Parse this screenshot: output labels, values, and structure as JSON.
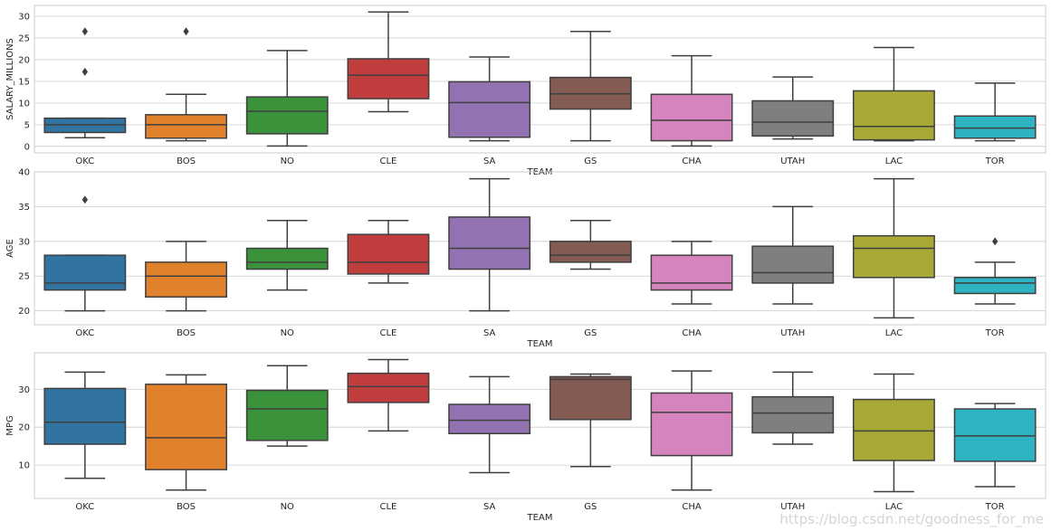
{
  "chart_data": [
    {
      "type": "box",
      "xlabel": "TEAM",
      "ylabel": "SALARY_MILLIONS",
      "ylim": [
        -1.5,
        32.5
      ],
      "yticks": [
        0,
        5,
        10,
        15,
        20,
        25,
        30
      ],
      "grid": "horizontal",
      "categories": [
        "OKC",
        "BOS",
        "NO",
        "CLE",
        "SA",
        "GS",
        "CHA",
        "UTAH",
        "LAC",
        "TOR"
      ],
      "boxes": [
        {
          "team": "OKC",
          "whisker_low": 2.0,
          "q1": 3.2,
          "median": 5.0,
          "q3": 6.5,
          "whisker_high": 6.5,
          "outliers": [
            17.2,
            26.5
          ]
        },
        {
          "team": "BOS",
          "whisker_low": 1.3,
          "q1": 1.9,
          "median": 5.0,
          "q3": 7.3,
          "whisker_high": 12.0,
          "outliers": [
            26.5
          ]
        },
        {
          "team": "NO",
          "whisker_low": 0.1,
          "q1": 2.9,
          "median": 8.1,
          "q3": 11.4,
          "whisker_high": 22.1,
          "outliers": []
        },
        {
          "team": "CLE",
          "whisker_low": 8.0,
          "q1": 11.0,
          "median": 16.4,
          "q3": 20.2,
          "whisker_high": 31.0,
          "outliers": []
        },
        {
          "team": "SA",
          "whisker_low": 1.3,
          "q1": 2.1,
          "median": 10.1,
          "q3": 14.9,
          "whisker_high": 20.6,
          "outliers": []
        },
        {
          "team": "GS",
          "whisker_low": 1.3,
          "q1": 8.6,
          "median": 12.1,
          "q3": 15.9,
          "whisker_high": 26.5,
          "outliers": []
        },
        {
          "team": "CHA",
          "whisker_low": 0.1,
          "q1": 1.3,
          "median": 6.0,
          "q3": 12.0,
          "whisker_high": 20.9,
          "outliers": []
        },
        {
          "team": "UTAH",
          "whisker_low": 1.7,
          "q1": 2.4,
          "median": 5.6,
          "q3": 10.5,
          "whisker_high": 16.0,
          "outliers": []
        },
        {
          "team": "LAC",
          "whisker_low": 1.3,
          "q1": 1.5,
          "median": 4.6,
          "q3": 12.8,
          "whisker_high": 22.8,
          "outliers": []
        },
        {
          "team": "TOR",
          "whisker_low": 1.3,
          "q1": 1.9,
          "median": 4.2,
          "q3": 7.0,
          "whisker_high": 14.6,
          "outliers": []
        }
      ]
    },
    {
      "type": "box",
      "xlabel": "TEAM",
      "ylabel": "AGE",
      "ylim": [
        18,
        40
      ],
      "yticks": [
        20,
        25,
        30,
        35,
        40
      ],
      "grid": "horizontal",
      "categories": [
        "OKC",
        "BOS",
        "NO",
        "CLE",
        "SA",
        "GS",
        "CHA",
        "UTAH",
        "LAC",
        "TOR"
      ],
      "boxes": [
        {
          "team": "OKC",
          "whisker_low": 20,
          "q1": 23,
          "median": 24,
          "q3": 28,
          "whisker_high": 28,
          "outliers": [
            36
          ]
        },
        {
          "team": "BOS",
          "whisker_low": 20,
          "q1": 22,
          "median": 25,
          "q3": 27,
          "whisker_high": 30,
          "outliers": []
        },
        {
          "team": "NO",
          "whisker_low": 23,
          "q1": 26,
          "median": 27,
          "q3": 29,
          "whisker_high": 33,
          "outliers": []
        },
        {
          "team": "CLE",
          "whisker_low": 24,
          "q1": 25.3,
          "median": 27,
          "q3": 31,
          "whisker_high": 33,
          "outliers": []
        },
        {
          "team": "SA",
          "whisker_low": 20,
          "q1": 26,
          "median": 29,
          "q3": 33.5,
          "whisker_high": 39,
          "outliers": []
        },
        {
          "team": "GS",
          "whisker_low": 26,
          "q1": 27,
          "median": 28,
          "q3": 30,
          "whisker_high": 33,
          "outliers": []
        },
        {
          "team": "CHA",
          "whisker_low": 21,
          "q1": 23,
          "median": 24,
          "q3": 28,
          "whisker_high": 30,
          "outliers": []
        },
        {
          "team": "UTAH",
          "whisker_low": 21,
          "q1": 24,
          "median": 25.5,
          "q3": 29.3,
          "whisker_high": 35,
          "outliers": []
        },
        {
          "team": "LAC",
          "whisker_low": 19,
          "q1": 24.8,
          "median": 29,
          "q3": 30.8,
          "whisker_high": 39,
          "outliers": []
        },
        {
          "team": "TOR",
          "whisker_low": 21,
          "q1": 22.5,
          "median": 24,
          "q3": 24.8,
          "whisker_high": 27,
          "outliers": [
            30
          ]
        }
      ]
    },
    {
      "type": "box",
      "xlabel": "TEAM",
      "ylabel": "MPG",
      "ylim": [
        1.2,
        39.6
      ],
      "yticks": [
        10,
        20,
        30
      ],
      "grid": "horizontal",
      "categories": [
        "OKC",
        "BOS",
        "NO",
        "CLE",
        "SA",
        "GS",
        "CHA",
        "UTAH",
        "LAC",
        "TOR"
      ],
      "boxes": [
        {
          "team": "OKC",
          "whisker_low": 6.5,
          "q1": 15.5,
          "median": 21.3,
          "q3": 30.2,
          "whisker_high": 34.5,
          "outliers": []
        },
        {
          "team": "BOS",
          "whisker_low": 3.4,
          "q1": 8.8,
          "median": 17.2,
          "q3": 31.3,
          "whisker_high": 33.8,
          "outliers": []
        },
        {
          "team": "NO",
          "whisker_low": 15.0,
          "q1": 16.5,
          "median": 24.8,
          "q3": 29.7,
          "whisker_high": 36.2,
          "outliers": []
        },
        {
          "team": "CLE",
          "whisker_low": 19.0,
          "q1": 26.5,
          "median": 30.7,
          "q3": 34.2,
          "whisker_high": 37.8,
          "outliers": []
        },
        {
          "team": "SA",
          "whisker_low": 8.0,
          "q1": 18.3,
          "median": 21.8,
          "q3": 26.0,
          "whisker_high": 33.3,
          "outliers": []
        },
        {
          "team": "GS",
          "whisker_low": 9.6,
          "q1": 22.0,
          "median": 32.6,
          "q3": 33.3,
          "whisker_high": 34.0,
          "outliers": []
        },
        {
          "team": "CHA",
          "whisker_low": 3.4,
          "q1": 12.5,
          "median": 23.9,
          "q3": 29.0,
          "whisker_high": 34.8,
          "outliers": []
        },
        {
          "team": "UTAH",
          "whisker_low": 15.5,
          "q1": 18.5,
          "median": 23.7,
          "q3": 28.0,
          "whisker_high": 34.5,
          "outliers": []
        },
        {
          "team": "LAC",
          "whisker_low": 3.0,
          "q1": 11.2,
          "median": 19.0,
          "q3": 27.3,
          "whisker_high": 34.0,
          "outliers": []
        },
        {
          "team": "TOR",
          "whisker_low": 4.3,
          "q1": 11.0,
          "median": 17.7,
          "q3": 24.8,
          "whisker_high": 26.2,
          "outliers": []
        }
      ]
    }
  ],
  "colors": [
    "#3274a1",
    "#e1812c",
    "#3a923a",
    "#c03d3e",
    "#9372b2",
    "#845b53",
    "#d684bd",
    "#7f7f7f",
    "#a9aa35",
    "#2eb3c2"
  ],
  "watermark": "https://blog.csdn.net/goodness_for_me"
}
